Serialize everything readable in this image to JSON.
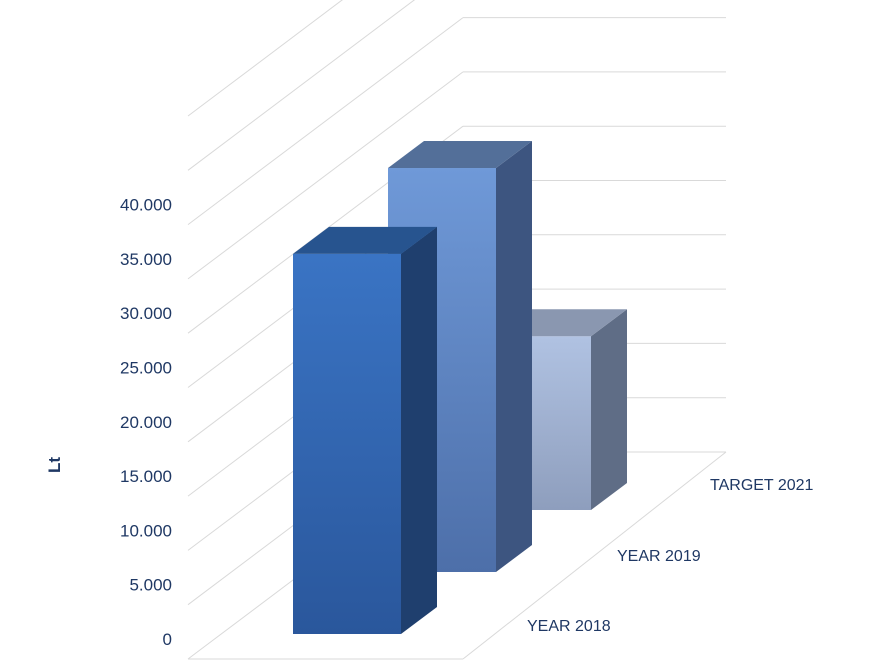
{
  "chart_data": {
    "type": "bar",
    "title": "",
    "xlabel": "",
    "ylabel": "Lt",
    "ylim": [
      0,
      40000
    ],
    "y_ticks": [
      "0",
      "5.000",
      "10.000",
      "15.000",
      "20.000",
      "25.000",
      "30.000",
      "35.000",
      "40.000"
    ],
    "categories": [
      "YEAR 2018",
      "YEAR 2019",
      "TARGET 2021"
    ],
    "values": [
      35000,
      37200,
      16000
    ],
    "grid": true,
    "legend": "none",
    "colors": {
      "bars_front": [
        "#3a74c4",
        "#6f99d8",
        "#b0c2e2"
      ],
      "bars_front_bottom": [
        "#2a579c",
        "#4d6fa9",
        "#8e9ebd"
      ],
      "bars_side": [
        "#1f3f6e",
        "#3d5580",
        "#5f6d86"
      ],
      "bars_top": [
        "#27548f",
        "#536f99",
        "#8a97b0"
      ],
      "text": "#1f3864",
      "grid": "#d9d9d9"
    }
  }
}
